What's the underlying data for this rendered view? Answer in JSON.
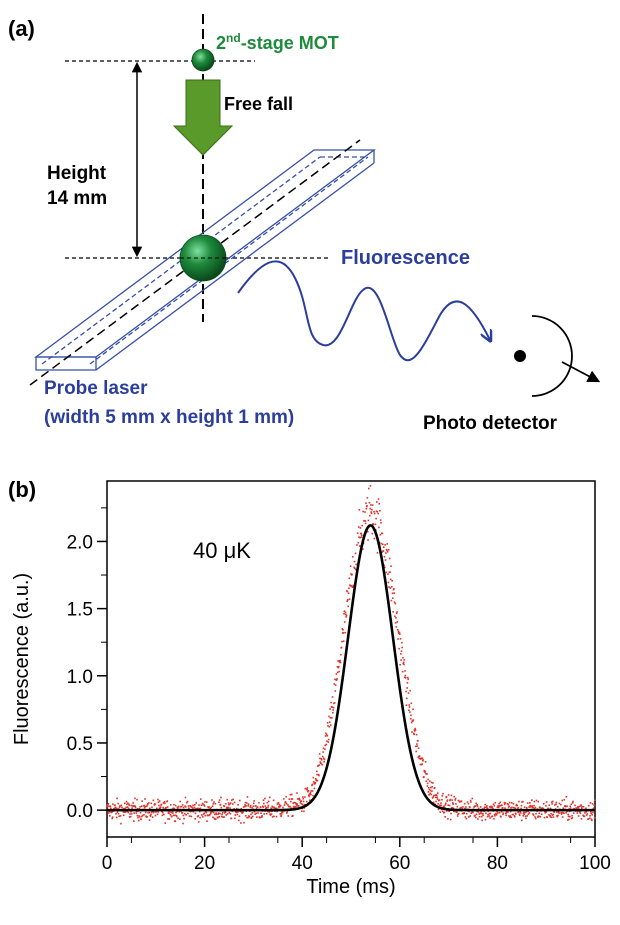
{
  "panel_a": {
    "label": "(a)",
    "mot_label_prefix": "2",
    "mot_label_sup": "nd",
    "mot_label_suffix": "-stage MOT",
    "free_fall": "Free fall",
    "height_line1": "Height",
    "height_line2": "14 mm",
    "fluorescence": "Fluorescence",
    "probe_line1": "Probe laser",
    "probe_line2": "(width 5 mm x height 1 mm)",
    "detector": "Photo detector",
    "colors": {
      "atom_green": "#1e8a3c",
      "arrow_green": "#5a9a2a",
      "laser_blue": "#3650a8",
      "text_blue": "#2b3e9c"
    }
  },
  "panel_b": {
    "label": "(b)",
    "annotation": "40 μK"
  },
  "chart_data": {
    "type": "scatter",
    "xlabel": "Time (ms)",
    "ylabel": "Fluorescence (a.u.)",
    "xlim": [
      0,
      100
    ],
    "ylim": [
      -0.2,
      2.45
    ],
    "x_ticks": [
      0,
      20,
      40,
      60,
      80,
      100
    ],
    "y_ticks": [
      0.0,
      0.5,
      1.0,
      1.5,
      2.0
    ],
    "x_tick_labels": [
      "0",
      "20",
      "40",
      "60",
      "80",
      "100"
    ],
    "y_tick_labels": [
      "0.0",
      "0.5",
      "1.0",
      "1.5",
      "2.0"
    ],
    "grid": false,
    "series": [
      {
        "kind": "data",
        "style": "red dotted noisy points",
        "color": "#e0332a",
        "x": [
          0,
          5,
          10,
          15,
          20,
          25,
          30,
          35,
          40,
          42,
          44,
          46,
          48,
          50,
          52,
          54,
          56,
          58,
          60,
          62,
          64,
          66,
          68,
          70,
          75,
          80,
          85,
          90,
          95,
          100
        ],
        "y": [
          0.0,
          0.0,
          0.0,
          0.0,
          0.0,
          0.0,
          0.0,
          0.01,
          0.05,
          0.13,
          0.35,
          0.7,
          1.2,
          1.7,
          2.05,
          2.25,
          2.1,
          1.75,
          1.25,
          0.78,
          0.4,
          0.18,
          0.07,
          0.03,
          0.0,
          0.0,
          0.0,
          0.0,
          0.0,
          0.0
        ]
      },
      {
        "kind": "fit",
        "style": "black solid line (Gaussian fit)",
        "color": "#000000",
        "amplitude": 2.12,
        "center": 54,
        "sigma": 4.6,
        "offset": 0
      }
    ]
  }
}
